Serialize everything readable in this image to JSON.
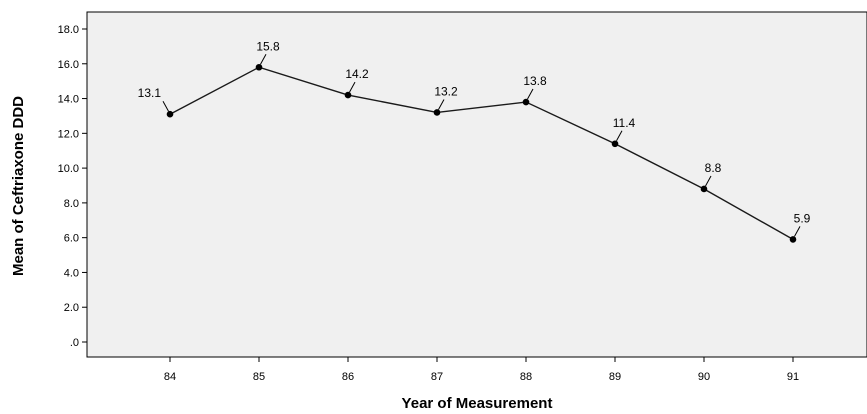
{
  "chart_data": {
    "type": "line",
    "title": "",
    "xlabel": "Year of Measurement",
    "ylabel": "Mean of Ceftriaxone DDD",
    "x": [
      "84",
      "85",
      "86",
      "87",
      "88",
      "89",
      "90",
      "91"
    ],
    "y_ticks": [
      ".0",
      "2.0",
      "4.0",
      "6.0",
      "8.0",
      "10.0",
      "12.0",
      "14.0",
      "16.0",
      "18.0"
    ],
    "ylim": [
      0,
      18
    ],
    "series": [
      {
        "values": [
          13.1,
          15.8,
          14.2,
          13.2,
          13.8,
          11.4,
          8.8,
          5.9
        ]
      }
    ],
    "data_labels": [
      "13.1",
      "15.8",
      "14.2",
      "13.2",
      "13.8",
      "11.4",
      "8.8",
      "5.9"
    ],
    "grid": false,
    "legend": "none",
    "colors": {
      "plot_background": "#f0f0f0",
      "line": "#1a1a1a",
      "marker": "#000000"
    }
  }
}
